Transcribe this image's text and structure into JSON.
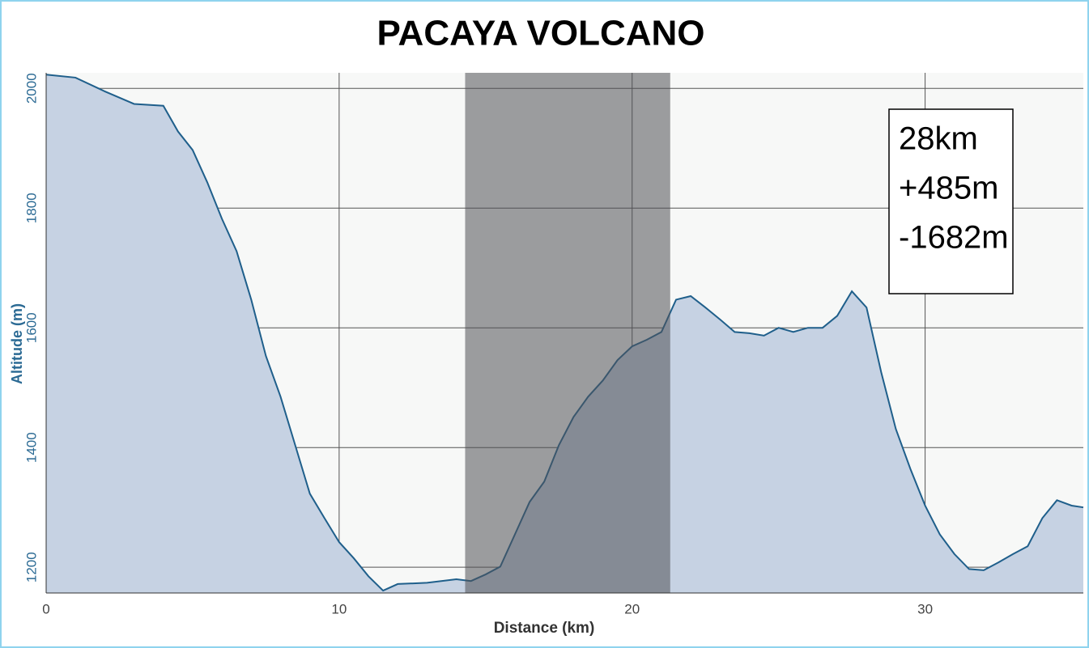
{
  "chart_data": {
    "type": "area",
    "title": "PACAYA VOLCANO",
    "x_label": "Distance (km)",
    "y_label": "Altitude (m)",
    "x": [
      0,
      1,
      2,
      3,
      4,
      4.5,
      5,
      5.5,
      6,
      6.5,
      7,
      7.5,
      8,
      8.5,
      9,
      9.5,
      10,
      10.5,
      11,
      11.5,
      12,
      13,
      14,
      14.5,
      15,
      15.5,
      16,
      16.5,
      17,
      17.5,
      18,
      18.5,
      19,
      19.5,
      20,
      20.5,
      21,
      21.5,
      22,
      22.5,
      23,
      23.5,
      24,
      24.5,
      25,
      25.5,
      26,
      26.5,
      27,
      27.5,
      28,
      28.5,
      29,
      29.5,
      30,
      30.5,
      31,
      31.5,
      32,
      32.5,
      33,
      33.5,
      34,
      34.5,
      35,
      35.4
    ],
    "values": [
      2023,
      2018,
      1995,
      1974,
      1971,
      1928,
      1897,
      1843,
      1782,
      1728,
      1647,
      1553,
      1485,
      1404,
      1323,
      1282,
      1242,
      1215,
      1185,
      1161,
      1172,
      1174,
      1180,
      1177,
      1188,
      1201,
      1255,
      1309,
      1343,
      1404,
      1451,
      1485,
      1512,
      1546,
      1569,
      1580,
      1593,
      1647,
      1653,
      1634,
      1614,
      1593,
      1591,
      1587,
      1600,
      1593,
      1600,
      1600,
      1620,
      1661,
      1634,
      1526,
      1431,
      1364,
      1303,
      1255,
      1222,
      1197,
      1195,
      1208,
      1222,
      1235,
      1282,
      1312,
      1303,
      1300
    ],
    "color": "#1f5f8b",
    "xlim": [
      0,
      35.4
    ],
    "ylim": [
      1157,
      2026
    ],
    "xticks": [
      0,
      10,
      20,
      30
    ],
    "yticks": [
      1200,
      1400,
      1600,
      1800,
      2000
    ],
    "grid": true,
    "shaded_range": [
      14.3,
      21.3
    ],
    "annotation": [
      "28km",
      "+485m",
      "-1682m"
    ]
  }
}
